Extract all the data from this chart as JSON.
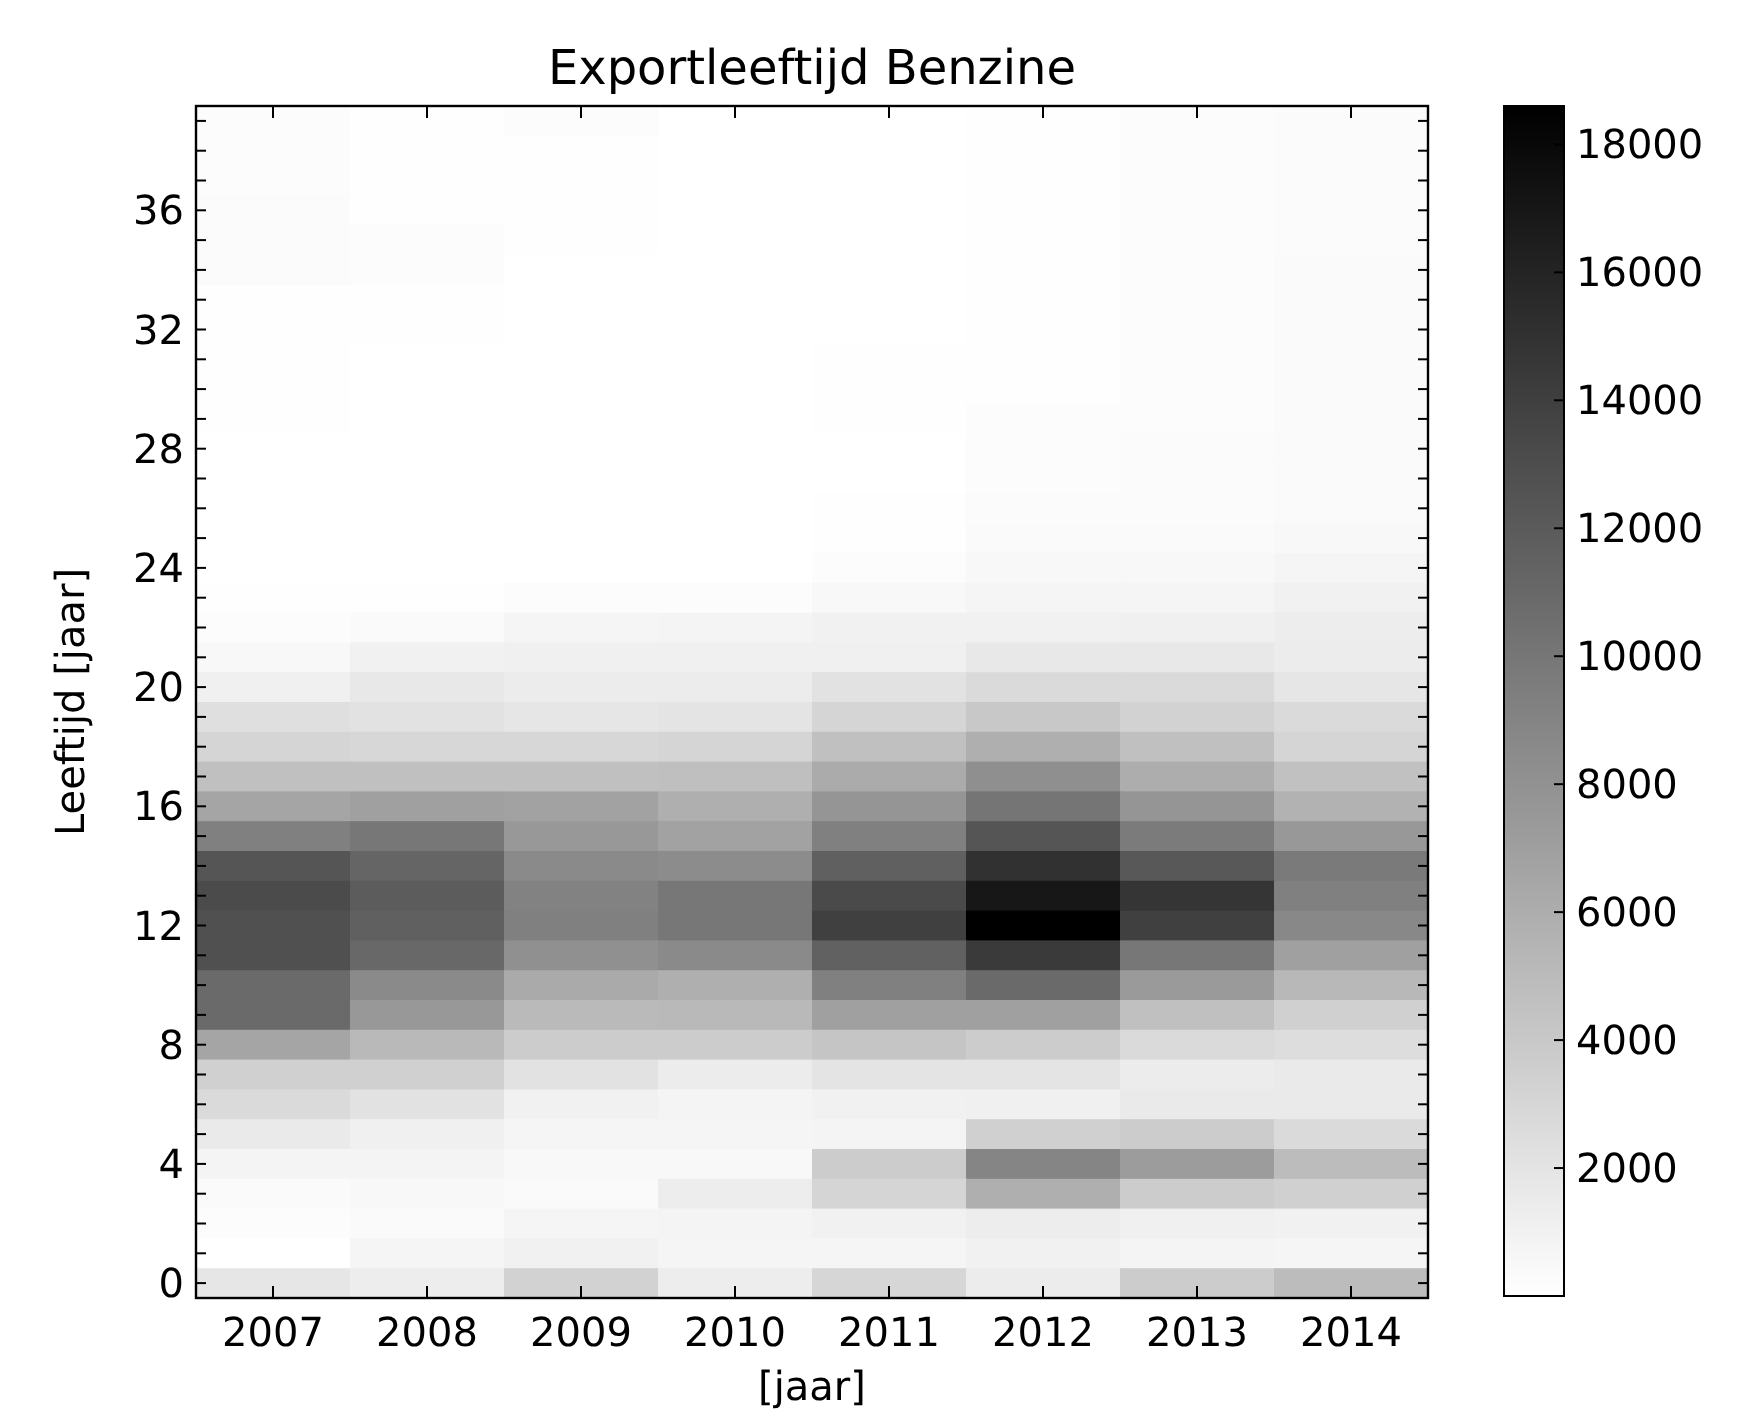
{
  "chart_data": {
    "type": "heatmap",
    "title": "Exportleeftijd Benzine",
    "xlabel": "[jaar]",
    "ylabel": "Leeftijd [jaar]",
    "categories": [
      "2007",
      "2008",
      "2009",
      "2010",
      "2011",
      "2012",
      "2013",
      "2014"
    ],
    "y_categories": [
      null,
      null,
      null,
      "36",
      null,
      null,
      null,
      "32",
      null,
      null,
      null,
      "28",
      null,
      null,
      null,
      "24",
      null,
      null,
      null,
      "20",
      null,
      null,
      null,
      "16",
      null,
      null,
      null,
      "12",
      null,
      null,
      null,
      "8",
      null,
      null,
      null,
      "4",
      null,
      null,
      null,
      "0"
    ],
    "cells": [
      [
        200,
        100,
        200,
        0,
        0,
        100,
        200,
        300
      ],
      [
        200,
        100,
        100,
        0,
        0,
        100,
        200,
        300
      ],
      [
        200,
        100,
        100,
        0,
        0,
        100,
        200,
        300
      ],
      [
        300,
        100,
        100,
        0,
        0,
        100,
        200,
        300
      ],
      [
        300,
        200,
        100,
        0,
        0,
        100,
        200,
        300
      ],
      [
        300,
        200,
        0,
        0,
        0,
        100,
        200,
        400
      ],
      [
        100,
        100,
        0,
        0,
        0,
        100,
        200,
        400
      ],
      [
        100,
        100,
        0,
        0,
        0,
        100,
        200,
        400
      ],
      [
        100,
        0,
        0,
        0,
        100,
        100,
        200,
        400
      ],
      [
        100,
        0,
        0,
        0,
        100,
        100,
        200,
        400
      ],
      [
        100,
        0,
        0,
        0,
        100,
        200,
        200,
        400
      ],
      [
        0,
        0,
        0,
        0,
        0,
        200,
        300,
        400
      ],
      [
        0,
        0,
        0,
        0,
        0,
        200,
        300,
        400
      ],
      [
        0,
        0,
        0,
        0,
        100,
        300,
        300,
        400
      ],
      [
        0,
        0,
        0,
        0,
        100,
        400,
        400,
        500
      ],
      [
        0,
        0,
        0,
        0,
        200,
        500,
        500,
        700
      ],
      [
        100,
        100,
        200,
        200,
        500,
        700,
        700,
        1000
      ],
      [
        200,
        400,
        700,
        800,
        1000,
        1000,
        1100,
        1300
      ],
      [
        500,
        1000,
        1100,
        1100,
        1100,
        1700,
        1700,
        1400
      ],
      [
        1100,
        1700,
        1400,
        1400,
        2100,
        2700,
        2700,
        1800
      ],
      [
        2300,
        2100,
        1800,
        2000,
        3100,
        4000,
        3300,
        2700
      ],
      [
        3100,
        2900,
        2900,
        3100,
        4600,
        5800,
        4600,
        3100
      ],
      [
        4600,
        4600,
        4600,
        4700,
        6100,
        8200,
        6000,
        4500
      ],
      [
        6600,
        6900,
        6800,
        5800,
        7700,
        10100,
        7700,
        5600
      ],
      [
        9300,
        9900,
        7500,
        6800,
        9300,
        12400,
        9600,
        7500
      ],
      [
        12400,
        11200,
        8500,
        8400,
        11600,
        15000,
        12200,
        9700
      ],
      [
        13100,
        11900,
        9100,
        9900,
        13200,
        16900,
        14700,
        9300
      ],
      [
        12800,
        11600,
        9300,
        9900,
        13900,
        18600,
        13900,
        8700
      ],
      [
        12800,
        11000,
        8100,
        8500,
        11500,
        14400,
        9900,
        6900
      ],
      [
        10900,
        8500,
        6200,
        5800,
        9300,
        10900,
        7400,
        5200
      ],
      [
        10900,
        7500,
        5000,
        5100,
        6900,
        6900,
        4600,
        3400
      ],
      [
        6600,
        5100,
        3700,
        3700,
        4200,
        3700,
        2700,
        2500
      ],
      [
        3400,
        3400,
        2100,
        1400,
        2000,
        2000,
        1400,
        1500
      ],
      [
        2700,
        2100,
        1000,
        800,
        1000,
        1100,
        1500,
        1500
      ],
      [
        1500,
        1100,
        700,
        700,
        800,
        3400,
        3700,
        2700
      ],
      [
        800,
        800,
        500,
        500,
        3700,
        8900,
        7200,
        4900
      ],
      [
        400,
        500,
        400,
        1300,
        3100,
        5800,
        3700,
        3400
      ],
      [
        200,
        400,
        700,
        800,
        1000,
        1300,
        1100,
        1000
      ],
      [
        0,
        700,
        1000,
        700,
        700,
        1000,
        800,
        700
      ],
      [
        1800,
        1300,
        3300,
        1300,
        3000,
        1400,
        3700,
        4900
      ]
    ],
    "clim": [
      0,
      18600
    ],
    "cticks": [
      2000,
      4000,
      6000,
      8000,
      10000,
      12000,
      14000,
      16000,
      18000
    ]
  }
}
